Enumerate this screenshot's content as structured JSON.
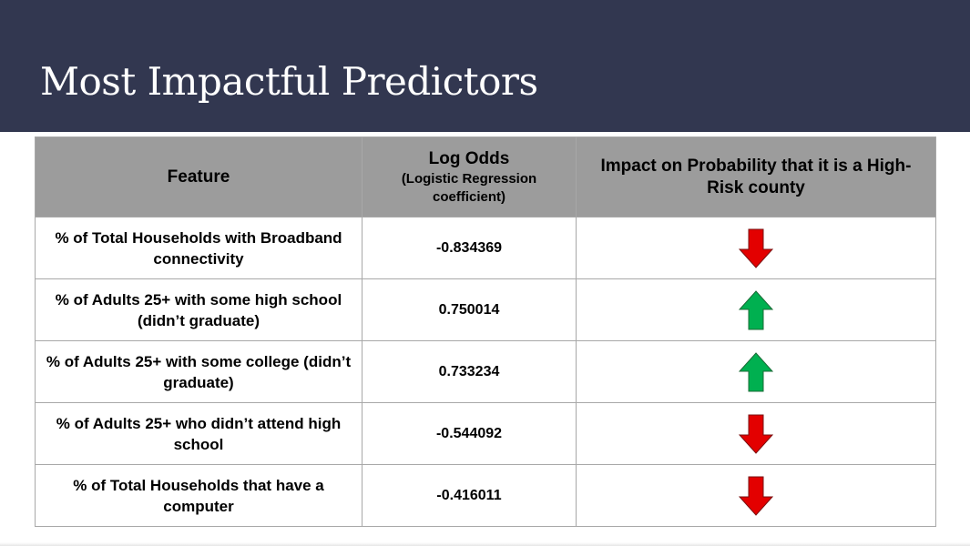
{
  "slide": {
    "title": "Most Impactful Predictors"
  },
  "table": {
    "headers": {
      "feature": "Feature",
      "log_odds": "Log Odds",
      "log_odds_sub": "(Logistic Regression coefficient)",
      "impact": "Impact on Probability that it is a High-Risk county"
    },
    "rows": [
      {
        "feature": "% of Total Households with Broadband connectivity",
        "log_odds": "-0.834369",
        "impact": "down"
      },
      {
        "feature": "% of Adults 25+ with some high school (didn’t graduate)",
        "log_odds": "0.750014",
        "impact": "up"
      },
      {
        "feature": "% of Adults 25+ with some college (didn’t graduate)",
        "log_odds": "0.733234",
        "impact": "up"
      },
      {
        "feature": "% of Adults 25+ who didn’t attend high school",
        "log_odds": "-0.544092",
        "impact": "down"
      },
      {
        "feature": "% of Total Households that have a computer",
        "log_odds": "-0.416011",
        "impact": "down"
      }
    ]
  },
  "colors": {
    "title_bar": "#323750",
    "header_fill": "#9c9c9c",
    "arrow_up": "#00b050",
    "arrow_down": "#e30000"
  },
  "icons": {
    "up": "green-up-arrow-icon",
    "down": "red-down-arrow-icon"
  }
}
